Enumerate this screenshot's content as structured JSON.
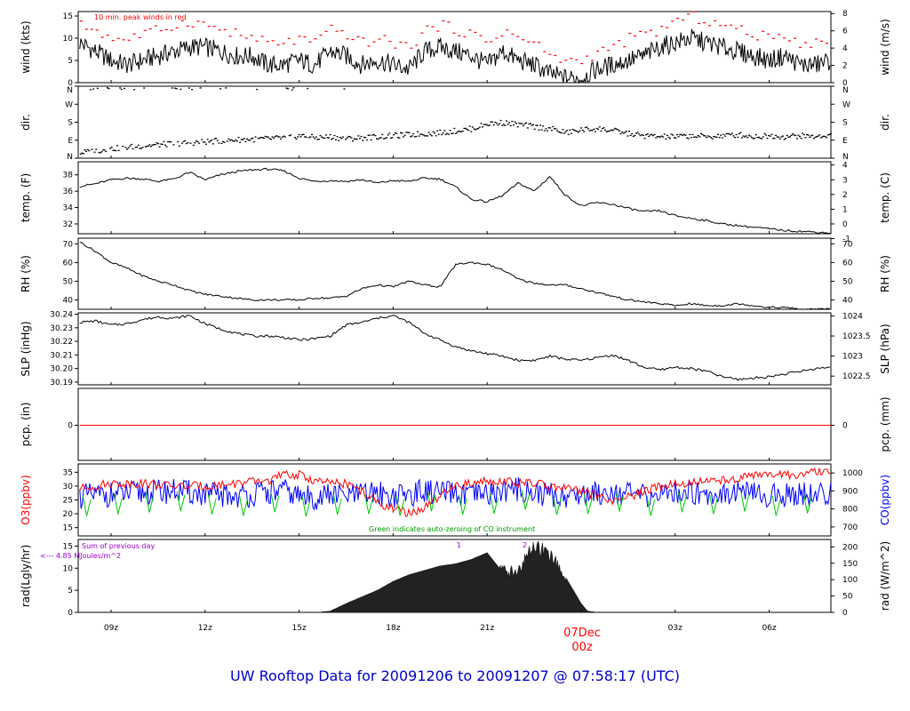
{
  "title": "UW Rooftop Data for 20091206  to  20091207 @ 07:58:17  (UTC)",
  "date_marker": {
    "date": "07Dec",
    "hour": "00z"
  },
  "x_axis": {
    "ticks": [
      {
        "label": "09z",
        "t": 1
      },
      {
        "label": "12z",
        "t": 4
      },
      {
        "label": "15z",
        "t": 7
      },
      {
        "label": "18z",
        "t": 10
      },
      {
        "label": "21z",
        "t": 13
      },
      {
        "label": "03z",
        "t": 19
      },
      {
        "label": "06z",
        "t": 22
      }
    ],
    "date_tick_t": 16,
    "range_hours_from_08z": [
      -0.05,
      23.97
    ]
  },
  "colors": {
    "black": "#000000",
    "red": "#ff0000",
    "blue": "#0000ff",
    "green": "#00cc00",
    "purple": "#9900cc",
    "title": "#0000cc"
  },
  "panels": {
    "wind": {
      "ylabel_left": "wind (kts)",
      "ylabel_right": "wind (m/s)",
      "ticks_left": [
        "0",
        "5",
        "10",
        "15"
      ],
      "ticks_right": [
        "0",
        "2",
        "4",
        "6",
        "8"
      ],
      "legend": "10 min. peak winds in red"
    },
    "dir": {
      "ylabel_left": "dir.",
      "ylabel_right": "dir.",
      "ticks": [
        "N",
        "E",
        "S",
        "W",
        "N"
      ]
    },
    "temp": {
      "ylabel_left": "temp. (F)",
      "ylabel_right": "temp. (C)",
      "ticks_left": [
        "32",
        "34",
        "36",
        "38"
      ],
      "ticks_right": [
        "-1",
        "0",
        "1",
        "2",
        "3",
        "4"
      ]
    },
    "rh": {
      "ylabel_left": "RH (%)",
      "ylabel_right": "RH (%)",
      "ticks_left": [
        "40",
        "50",
        "60",
        "70"
      ],
      "ticks_right": [
        "40",
        "50",
        "60",
        "70"
      ]
    },
    "slp": {
      "ylabel_left": "SLP (inHg)",
      "ylabel_right": "SLP (hPa)",
      "ticks_left": [
        "30.19",
        "30.20",
        "30.21",
        "30.22",
        "30.23",
        "30.24"
      ],
      "ticks_right": [
        "1022.5",
        "1023",
        "1023.5",
        "1024"
      ]
    },
    "pcp": {
      "ylabel_left": "pcp. (in)",
      "ylabel_right": "pcp. (mm)",
      "tick_left": "0",
      "tick_right": "0"
    },
    "chem": {
      "ylabel_left": "O3(ppbv)",
      "ylabel_right": "CO(ppbv)",
      "ticks_left": [
        "15",
        "20",
        "25",
        "30",
        "35"
      ],
      "ticks_right": [
        "700",
        "800",
        "900",
        "1000"
      ],
      "note": "Green indicates auto-zeroing of CO instrument"
    },
    "rad": {
      "ylabel_left": "rad(Lgly/hr)",
      "ylabel_right": "rad (W/m^2)",
      "ticks_left": [
        "0",
        "5",
        "10",
        "15"
      ],
      "ticks_right": [
        "0",
        "50",
        "100",
        "150",
        "200"
      ],
      "note_line1": "Sum of previous day",
      "note_line2": "<--- 4.85 MJoules/m^2",
      "markers": [
        "1",
        "2"
      ]
    }
  },
  "chart_data": [
    {
      "type": "line",
      "name": "wind",
      "x_unit": "hours since 08z 06Dec",
      "x": [
        0,
        0.5,
        1,
        1.5,
        2,
        2.5,
        3,
        3.5,
        4,
        4.5,
        5,
        5.5,
        6,
        6.5,
        7,
        7.5,
        8,
        8.5,
        9,
        9.5,
        10,
        10.5,
        11,
        11.5,
        12,
        12.5,
        13,
        13.5,
        14,
        14.5,
        15,
        15.5,
        16,
        16.5,
        17,
        17.5,
        18,
        18.5,
        19,
        19.5,
        20,
        20.5,
        21,
        21.5,
        22,
        22.5,
        23,
        23.5,
        23.97
      ],
      "series": [
        {
          "values": [
            9,
            7,
            5,
            4,
            5,
            6,
            7,
            8,
            8,
            7,
            6,
            6,
            4,
            4,
            5,
            4,
            7,
            6,
            4,
            5,
            4,
            3,
            7,
            8,
            7,
            6,
            4,
            7,
            5,
            4,
            2,
            1,
            1,
            3,
            4,
            5,
            6,
            8,
            9,
            10,
            9,
            8,
            7,
            6,
            5,
            6,
            4,
            4,
            5
          ]
        },
        {
          "values": [
            13,
            12,
            10,
            10,
            11,
            12,
            13,
            14,
            13,
            12,
            11,
            10,
            9,
            9,
            10,
            9,
            12,
            11,
            9,
            10,
            9,
            8,
            12,
            13,
            12,
            11,
            9,
            12,
            10,
            9,
            6,
            5,
            5,
            7,
            8,
            10,
            11,
            12,
            14,
            15,
            14,
            13,
            12,
            11,
            10,
            11,
            9,
            9,
            10
          ]
        }
      ],
      "ylim": [
        0,
        16
      ]
    },
    {
      "type": "scatter",
      "name": "dir",
      "x": [
        0,
        1,
        2,
        3,
        4,
        5,
        6,
        6.5,
        7,
        7.5,
        8,
        8.5,
        9,
        9.5,
        10,
        10.5,
        11,
        11.5,
        12,
        12.5,
        13,
        13.5,
        14,
        14.5,
        15,
        15.5,
        16,
        16.5,
        17,
        17.5,
        18,
        18.5,
        19,
        19.5,
        20,
        20.5,
        21,
        21.5,
        22,
        22.5,
        23,
        23.5,
        23.97
      ],
      "values": [
        30,
        50,
        65,
        75,
        85,
        95,
        100,
        105,
        115,
        105,
        110,
        100,
        105,
        110,
        115,
        120,
        125,
        130,
        140,
        150,
        175,
        180,
        170,
        160,
        150,
        130,
        145,
        150,
        140,
        125,
        115,
        110,
        110,
        115,
        110,
        115,
        120,
        110,
        115,
        110,
        115,
        110,
        120
      ],
      "ylim": [
        0,
        360
      ]
    },
    {
      "type": "line",
      "name": "temp",
      "x": [
        0,
        0.5,
        1,
        1.5,
        2,
        2.5,
        3,
        3.5,
        4,
        4.5,
        5,
        5.5,
        6,
        6.5,
        7,
        7.5,
        8,
        8.5,
        9,
        9.5,
        10,
        10.5,
        11,
        11.5,
        12,
        12.5,
        13,
        13.5,
        14,
        14.5,
        15,
        15.5,
        16,
        16.5,
        17,
        17.5,
        18,
        18.5,
        19,
        19.5,
        20,
        20.5,
        21,
        21.5,
        22,
        22.5,
        23,
        23.5,
        23.97
      ],
      "values": [
        36.6,
        36.9,
        37.4,
        37.6,
        37.5,
        37.2,
        37.5,
        38.3,
        37.4,
        38.0,
        38.4,
        38.6,
        38.7,
        38.5,
        37.6,
        37.2,
        37.3,
        37.2,
        37.4,
        37.0,
        37.3,
        37.2,
        37.6,
        37.5,
        36.5,
        35.0,
        34.7,
        35.5,
        37.0,
        36.0,
        37.8,
        35.5,
        34.2,
        34.6,
        34.4,
        33.9,
        33.5,
        33.6,
        33.0,
        32.7,
        32.4,
        32.0,
        31.8,
        31.6,
        31.4,
        31.2,
        31.1,
        31.0,
        30.9
      ],
      "ylim": [
        30.8,
        39.6
      ]
    },
    {
      "type": "line",
      "name": "rh",
      "x": [
        0,
        0.5,
        1,
        1.5,
        2,
        2.5,
        3,
        3.5,
        4,
        4.5,
        5,
        5.5,
        6,
        6.5,
        7,
        7.5,
        8,
        8.5,
        9,
        9.5,
        10,
        10.5,
        11,
        11.5,
        12,
        12.5,
        13,
        13.5,
        14,
        14.5,
        15,
        15.5,
        16,
        16.5,
        17,
        17.5,
        18,
        18.5,
        19,
        19.5,
        20,
        20.5,
        21,
        21.5,
        22,
        22.5,
        23,
        23.5,
        23.97
      ],
      "values": [
        71,
        66,
        60,
        57,
        53,
        50,
        48,
        45,
        43,
        42,
        41,
        40,
        40,
        40,
        40,
        41,
        41,
        42,
        46,
        48,
        47,
        50,
        48,
        47,
        59,
        60,
        59,
        56,
        51,
        49,
        48,
        48,
        46,
        44,
        42,
        40,
        39,
        38,
        37,
        38,
        37,
        37,
        38,
        37,
        36,
        36,
        35,
        35,
        35
      ],
      "ylim": [
        35,
        73
      ]
    },
    {
      "type": "line",
      "name": "slp",
      "x": [
        0,
        0.5,
        1,
        1.5,
        2,
        2.5,
        3,
        3.5,
        4,
        4.5,
        5,
        5.5,
        6,
        6.5,
        7,
        7.5,
        8,
        8.5,
        9,
        9.5,
        10,
        10.5,
        11,
        11.5,
        12,
        12.5,
        13,
        13.5,
        14,
        14.5,
        15,
        15.5,
        16,
        16.5,
        17,
        17.5,
        18,
        18.5,
        19,
        19.5,
        20,
        20.5,
        21,
        21.5,
        22,
        22.5,
        23,
        23.5,
        23.97
      ],
      "values": [
        30.234,
        30.235,
        30.232,
        30.233,
        30.236,
        30.238,
        30.237,
        30.239,
        30.233,
        30.229,
        30.226,
        30.224,
        30.224,
        30.223,
        30.221,
        30.222,
        30.224,
        30.232,
        30.234,
        30.237,
        30.239,
        30.234,
        30.226,
        30.221,
        30.216,
        30.213,
        30.211,
        30.209,
        30.206,
        30.206,
        30.209,
        30.207,
        30.206,
        30.208,
        30.21,
        30.206,
        30.201,
        30.199,
        30.201,
        30.2,
        30.198,
        30.194,
        30.192,
        30.193,
        30.194,
        30.196,
        30.198,
        30.2,
        30.201
      ],
      "ylim": [
        30.188,
        30.241
      ]
    },
    {
      "type": "line",
      "name": "pcp",
      "x": [
        0,
        23.97
      ],
      "values": [
        0,
        0
      ],
      "ylim": [
        -1,
        1
      ]
    },
    {
      "type": "line",
      "name": "chem",
      "x": [
        0,
        1,
        2,
        3,
        4,
        5,
        6,
        6.5,
        7,
        7.5,
        8,
        8.5,
        9,
        9.5,
        10,
        10.5,
        11,
        11.5,
        12,
        12.5,
        13,
        13.5,
        14,
        14.5,
        15,
        15.5,
        16,
        16.5,
        17,
        17.5,
        18,
        18.5,
        19,
        19.5,
        20,
        20.5,
        21,
        21.5,
        22,
        22.5,
        23,
        23.5,
        23.97
      ],
      "series": [
        {
          "name": "O3",
          "values": [
            29,
            31,
            31,
            30,
            30,
            31,
            32,
            34,
            34,
            32,
            31,
            31,
            28,
            24,
            22,
            20,
            22,
            26,
            30,
            31,
            32,
            32,
            31,
            31,
            30,
            29,
            28,
            27,
            24,
            26,
            28,
            30,
            31,
            31,
            32,
            32,
            33,
            34,
            34,
            34,
            34,
            35,
            35
          ]
        },
        {
          "name": "CO",
          "values": [
            870,
            880,
            890,
            900,
            880,
            870,
            890,
            900,
            870,
            860,
            880,
            870,
            880,
            890,
            870,
            880,
            900,
            890,
            880,
            870,
            880,
            900,
            910,
            890,
            880,
            870,
            880,
            890,
            900,
            880,
            870,
            880,
            890,
            900,
            880,
            890,
            900,
            880,
            870,
            880,
            890,
            870,
            880
          ]
        }
      ],
      "ylim_left": [
        12,
        38
      ],
      "ylim_right": [
        650,
        1050
      ]
    },
    {
      "type": "area",
      "name": "rad",
      "x": [
        7.6,
        8,
        8.5,
        9,
        9.5,
        10,
        10.5,
        11,
        11.5,
        12,
        12.5,
        13,
        13.5,
        14,
        14.5,
        15,
        15.5,
        16,
        16.2,
        16.5
      ],
      "values": [
        0,
        0.3,
        2,
        3.5,
        5,
        7,
        8.5,
        9.5,
        10.5,
        11,
        12,
        13.5,
        9,
        9.5,
        15,
        13,
        8,
        2,
        0.3,
        0
      ],
      "ylim": [
        0,
        16.5
      ]
    }
  ]
}
